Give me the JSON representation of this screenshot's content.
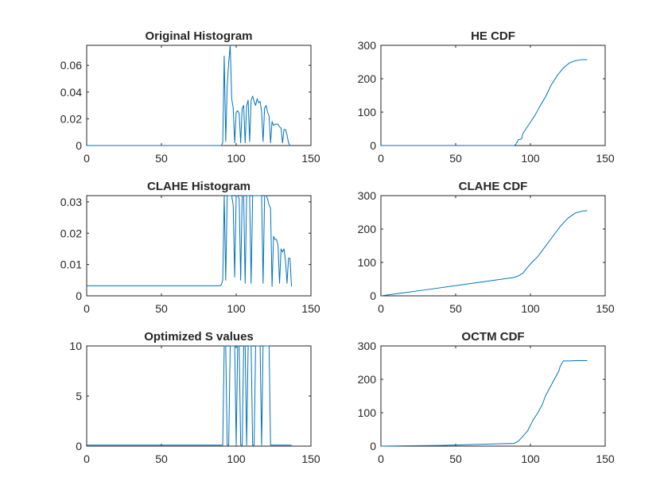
{
  "chart_data": [
    {
      "type": "line",
      "title": "Original Histogram",
      "xlim": [
        0,
        150
      ],
      "ylim": [
        0,
        0.075
      ],
      "xticks": [
        0,
        50,
        100,
        150
      ],
      "xtick_labels": [
        "0",
        "50",
        "100",
        "150"
      ],
      "yticks": [
        0,
        0.02,
        0.04,
        0.06
      ],
      "ytick_labels": [
        "0",
        "0.02",
        "0.04",
        "0.06"
      ],
      "grid": false,
      "line_color": "#0072BD",
      "x": [
        0,
        90,
        91,
        92,
        93,
        94,
        95,
        96,
        97,
        98,
        99,
        100,
        101,
        102,
        103,
        104,
        105,
        106,
        107,
        108,
        109,
        110,
        111,
        112,
        113,
        114,
        115,
        116,
        117,
        118,
        119,
        120,
        121,
        122,
        123,
        124,
        125,
        126,
        127,
        128,
        129,
        130,
        131,
        132,
        133,
        134,
        135,
        136
      ],
      "y": [
        0,
        0,
        0.002,
        0.067,
        0.003,
        0.045,
        0.062,
        0.075,
        0.035,
        0.028,
        0.002,
        0.025,
        0.026,
        0.024,
        0.002,
        0.028,
        0.03,
        0.002,
        0.03,
        0.034,
        0.003,
        0.034,
        0.037,
        0.033,
        0.03,
        0.035,
        0.032,
        0.033,
        0.025,
        0.003,
        0.028,
        0.03,
        0.025,
        0.022,
        0.002,
        0.018,
        0.015,
        0.016,
        0.016,
        0.016,
        0.014,
        0.013,
        0.002,
        0.012,
        0.012,
        0.008,
        0.002,
        0
      ]
    },
    {
      "type": "line",
      "title": "HE CDF",
      "xlim": [
        0,
        150
      ],
      "ylim": [
        0,
        300
      ],
      "xticks": [
        0,
        50,
        100,
        150
      ],
      "xtick_labels": [
        "0",
        "50",
        "100",
        "150"
      ],
      "yticks": [
        0,
        100,
        200,
        300
      ],
      "ytick_labels": [
        "0",
        "100",
        "200",
        "300"
      ],
      "grid": false,
      "line_color": "#0072BD",
      "x": [
        0,
        89,
        90,
        92,
        94,
        95,
        97,
        100,
        103,
        106,
        110,
        114,
        118,
        122,
        126,
        130,
        134,
        138
      ],
      "y": [
        0,
        0,
        2,
        17,
        20,
        36,
        50,
        70,
        90,
        115,
        145,
        182,
        210,
        232,
        247,
        254,
        257,
        257
      ]
    },
    {
      "type": "line",
      "title": "CLAHE Histogram",
      "xlim": [
        0,
        150
      ],
      "ylim": [
        0,
        0.032
      ],
      "xticks": [
        0,
        50,
        100,
        150
      ],
      "xtick_labels": [
        "0",
        "50",
        "100",
        "150"
      ],
      "yticks": [
        0,
        0.01,
        0.02,
        0.03
      ],
      "ytick_labels": [
        "0",
        "0.01",
        "0.02",
        "0.03"
      ],
      "grid": false,
      "line_color": "#0072BD",
      "x": [
        0,
        89,
        90,
        91,
        92,
        93,
        94,
        95,
        96,
        97,
        98,
        99,
        100,
        101,
        102,
        103,
        104,
        105,
        106,
        107,
        108,
        109,
        110,
        111,
        112,
        113,
        114,
        115,
        116,
        117,
        118,
        119,
        120,
        121,
        122,
        123,
        124,
        125,
        126,
        127,
        128,
        129,
        130,
        131,
        132,
        133,
        134,
        135,
        136,
        137
      ],
      "y": [
        0.0032,
        0.0032,
        0.0035,
        0.005,
        0.032,
        0.005,
        0.032,
        0.032,
        0.032,
        0.032,
        0.029,
        0.006,
        0.032,
        0.032,
        0.031,
        0.005,
        0.032,
        0.032,
        0.004,
        0.032,
        0.032,
        0.032,
        0.004,
        0.032,
        0.032,
        0.032,
        0.032,
        0.032,
        0.032,
        0.032,
        0.004,
        0.032,
        0.032,
        0.031,
        0.029,
        0.028,
        0.003,
        0.019,
        0.018,
        0.018,
        0.016,
        0.004,
        0.015,
        0.014,
        0.015,
        0.011,
        0.004,
        0.012,
        0.012,
        0.003
      ]
    },
    {
      "type": "line",
      "title": "CLAHE CDF",
      "xlim": [
        0,
        150
      ],
      "ylim": [
        0,
        300
      ],
      "xticks": [
        0,
        50,
        100,
        150
      ],
      "xtick_labels": [
        "0",
        "50",
        "100",
        "150"
      ],
      "yticks": [
        0,
        100,
        200,
        300
      ],
      "ytick_labels": [
        "0",
        "100",
        "200",
        "300"
      ],
      "grid": false,
      "line_color": "#0072BD",
      "x": [
        0,
        30,
        60,
        89,
        92,
        95,
        98,
        101,
        105,
        110,
        115,
        120,
        125,
        130,
        135,
        138
      ],
      "y": [
        0,
        18,
        37,
        55,
        60,
        68,
        85,
        100,
        118,
        148,
        178,
        208,
        232,
        248,
        254,
        255
      ]
    },
    {
      "type": "line",
      "title": "Optimized S values",
      "xlim": [
        0,
        150
      ],
      "ylim": [
        0,
        10
      ],
      "xticks": [
        0,
        50,
        100,
        150
      ],
      "xtick_labels": [
        "0",
        "50",
        "100",
        "150"
      ],
      "yticks": [
        0,
        5,
        10
      ],
      "ytick_labels": [
        "0",
        "5",
        "10"
      ],
      "grid": false,
      "line_color": "#0072BD",
      "x": [
        0,
        89,
        90,
        91,
        92,
        93,
        94,
        95,
        96,
        97,
        98,
        99,
        100,
        101,
        102,
        103,
        104,
        105,
        106,
        107,
        108,
        109,
        110,
        111,
        112,
        113,
        114,
        115,
        116,
        117,
        118,
        119,
        120,
        121,
        122,
        123,
        124,
        130,
        137
      ],
      "y": [
        0.1,
        0.1,
        0.1,
        0.1,
        10,
        10,
        0.1,
        0.1,
        10,
        10,
        10,
        10,
        0.1,
        10,
        10,
        0.1,
        0.1,
        10,
        10,
        0.1,
        10,
        10,
        10,
        0.1,
        0.1,
        10,
        10,
        10,
        10,
        0.1,
        10,
        10,
        10,
        10,
        10,
        0.1,
        0.1,
        0.1,
        0.1
      ]
    },
    {
      "type": "line",
      "title": "OCTM CDF",
      "xlim": [
        0,
        150
      ],
      "ylim": [
        0,
        300
      ],
      "xticks": [
        0,
        50,
        100,
        150
      ],
      "xtick_labels": [
        "0",
        "50",
        "100",
        "150"
      ],
      "yticks": [
        0,
        100,
        200,
        300
      ],
      "ytick_labels": [
        "0",
        "100",
        "200",
        "300"
      ],
      "grid": false,
      "line_color": "#0072BD",
      "x": [
        0,
        40,
        80,
        89,
        92,
        95,
        98,
        100,
        102,
        105,
        108,
        110,
        113,
        116,
        119,
        120,
        122,
        126,
        130,
        138
      ],
      "y": [
        0,
        2,
        7,
        8,
        15,
        30,
        45,
        62,
        80,
        100,
        125,
        150,
        175,
        200,
        225,
        240,
        255,
        255,
        256,
        256
      ]
    }
  ]
}
